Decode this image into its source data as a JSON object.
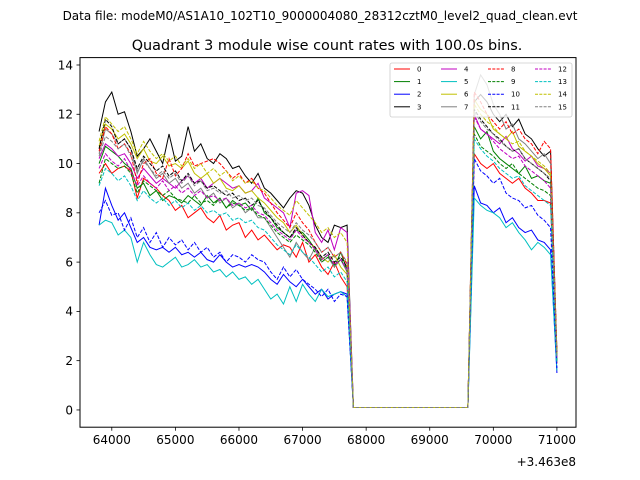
{
  "page": {
    "suptitle": "Data file: modeM0/AS1A10_102T10_9000004080_28312cztM0_level2_quad_clean.evt",
    "title": "Quadrant 3 module wise count rates with 100.0s bins."
  },
  "chart_data": {
    "type": "line",
    "title": "Quadrant 3 module wise count rates with 100.0s bins.",
    "xlabel": "",
    "ylabel": "",
    "x_offset_label": "+3.463e8",
    "xlim": [
      63500,
      71300
    ],
    "ylim": [
      -0.7,
      14.3
    ],
    "x_ticks": [
      64000,
      65000,
      66000,
      67000,
      68000,
      69000,
      70000,
      71000
    ],
    "x_tick_labels": [
      "64000",
      "65000",
      "66000",
      "67000",
      "68000",
      "69000",
      "70000",
      "71000"
    ],
    "y_ticks": [
      0,
      2,
      4,
      6,
      8,
      10,
      12,
      14
    ],
    "y_tick_labels": [
      "0",
      "2",
      "4",
      "6",
      "8",
      "10",
      "12",
      "14"
    ],
    "grid": false,
    "legend_position": "top-right",
    "legend_columns": 4,
    "x": [
      63800,
      63900,
      64000,
      64100,
      64200,
      64300,
      64400,
      64500,
      64600,
      64700,
      64800,
      64900,
      65000,
      65100,
      65200,
      65300,
      65400,
      65500,
      65600,
      65700,
      65800,
      65900,
      66000,
      66100,
      66200,
      66300,
      66400,
      66500,
      66600,
      66700,
      66800,
      66900,
      67000,
      67100,
      67200,
      67300,
      67400,
      67500,
      67600,
      67700,
      67800,
      69600,
      69700,
      69800,
      69900,
      70000,
      70100,
      70200,
      70300,
      70400,
      70500,
      70600,
      70700,
      70800,
      70900,
      71000
    ],
    "series": [
      {
        "name": "0",
        "color": "#ff0000",
        "dash": "solid",
        "values": [
          9.6,
          10.0,
          9.6,
          9.8,
          9.9,
          9.7,
          8.6,
          9.4,
          9.2,
          9.0,
          8.7,
          8.5,
          8.1,
          8.3,
          7.8,
          8.0,
          8.2,
          7.8,
          7.6,
          7.9,
          7.3,
          7.5,
          7.6,
          7.0,
          7.3,
          6.9,
          7.1,
          6.8,
          6.5,
          6.7,
          6.6,
          6.2,
          6.8,
          6.0,
          6.3,
          5.8,
          5.5,
          6.0,
          5.4,
          5.0,
          0.1,
          0.1,
          10.4,
          10.0,
          9.8,
          10.0,
          9.6,
          9.4,
          9.2,
          9.4,
          9.0,
          8.8,
          8.5,
          8.5,
          8.4,
          1.9
        ]
      },
      {
        "name": "1",
        "color": "#008000",
        "dash": "solid",
        "values": [
          10.0,
          10.7,
          10.5,
          10.3,
          10.0,
          9.8,
          9.0,
          9.2,
          8.7,
          8.9,
          8.5,
          8.7,
          8.6,
          8.4,
          8.7,
          8.5,
          8.3,
          8.7,
          8.4,
          8.6,
          8.2,
          8.5,
          8.3,
          8.4,
          8.1,
          8.6,
          8.0,
          7.8,
          7.4,
          7.2,
          7.0,
          7.3,
          7.2,
          6.9,
          6.5,
          6.1,
          6.3,
          5.8,
          6.4,
          5.7,
          0.1,
          0.1,
          11.5,
          11.0,
          11.3,
          10.5,
          10.2,
          10.0,
          9.8,
          9.6,
          9.9,
          9.4,
          9.5,
          9.3,
          9.2,
          2.0
        ]
      },
      {
        "name": "2",
        "color": "#0000ff",
        "dash": "solid",
        "values": [
          7.5,
          9.0,
          8.3,
          7.7,
          8.0,
          7.4,
          6.8,
          7.0,
          6.6,
          6.5,
          6.6,
          6.4,
          6.6,
          6.3,
          6.4,
          6.2,
          6.4,
          6.1,
          6.0,
          6.3,
          6.0,
          5.8,
          5.9,
          5.8,
          5.9,
          5.8,
          5.6,
          5.3,
          5.1,
          5.5,
          5.2,
          5.0,
          5.3,
          5.0,
          4.7,
          4.9,
          4.5,
          4.7,
          4.8,
          4.7,
          0.1,
          0.1,
          9.1,
          8.4,
          8.3,
          8.0,
          8.2,
          7.6,
          7.8,
          7.4,
          7.2,
          7.3,
          6.9,
          6.8,
          6.5,
          1.5
        ]
      },
      {
        "name": "3",
        "color": "#000000",
        "dash": "solid",
        "values": [
          11.3,
          12.5,
          12.9,
          12.0,
          12.1,
          11.3,
          10.3,
          10.6,
          11.0,
          10.5,
          10.0,
          11.2,
          10.1,
          10.3,
          11.5,
          10.5,
          10.8,
          10.2,
          10.0,
          10.4,
          10.2,
          9.8,
          9.9,
          9.5,
          9.2,
          9.6,
          9.0,
          8.8,
          8.5,
          8.2,
          8.6,
          8.9,
          8.8,
          8.3,
          7.5,
          7.0,
          6.8,
          7.5,
          7.4,
          7.5,
          0.1,
          0.1,
          12.5,
          12.8,
          12.5,
          12.0,
          11.7,
          12.0,
          11.5,
          11.8,
          11.2,
          11.0,
          10.6,
          10.3,
          10.5,
          2.3
        ]
      },
      {
        "name": "4",
        "color": "#c000c0",
        "dash": "solid",
        "values": [
          10.2,
          10.8,
          10.6,
          10.3,
          10.4,
          10.0,
          9.4,
          9.8,
          9.5,
          9.2,
          9.4,
          9.2,
          9.0,
          9.3,
          9.5,
          9.2,
          9.4,
          9.0,
          9.2,
          9.4,
          9.2,
          9.0,
          9.1,
          8.8,
          8.9,
          9.2,
          8.6,
          8.4,
          8.2,
          8.0,
          7.4,
          8.8,
          8.9,
          8.7,
          7.2,
          6.8,
          7.3,
          6.5,
          7.4,
          7.2,
          0.1,
          0.1,
          12.0,
          11.4,
          11.2,
          11.0,
          10.8,
          11.1,
          10.6,
          10.4,
          10.1,
          10.3,
          9.9,
          9.8,
          9.6,
          2.2
        ]
      },
      {
        "name": "5",
        "color": "#00c0c0",
        "dash": "solid",
        "values": [
          7.5,
          7.7,
          7.6,
          7.1,
          7.3,
          7.0,
          6.0,
          6.8,
          6.3,
          5.9,
          5.8,
          6.0,
          6.2,
          5.8,
          5.9,
          6.1,
          5.8,
          5.9,
          5.6,
          5.7,
          5.4,
          5.6,
          5.3,
          5.4,
          5.1,
          5.3,
          4.9,
          4.5,
          4.7,
          4.3,
          5.0,
          4.4,
          5.1,
          4.7,
          4.4,
          4.9,
          4.6,
          4.7,
          4.8,
          4.6,
          0.1,
          0.1,
          8.6,
          8.3,
          8.1,
          8.0,
          7.8,
          7.4,
          7.6,
          7.2,
          6.9,
          6.5,
          6.8,
          6.6,
          6.3,
          1.6
        ]
      },
      {
        "name": "6",
        "color": "#c0c000",
        "dash": "solid",
        "values": [
          10.7,
          11.6,
          11.4,
          11.0,
          11.2,
          10.8,
          10.2,
          10.6,
          10.1,
          10.0,
          10.3,
          9.9,
          10.0,
          9.8,
          10.1,
          9.6,
          9.4,
          9.6,
          9.2,
          9.4,
          9.0,
          8.9,
          9.1,
          8.8,
          8.9,
          8.6,
          8.4,
          8.1,
          7.8,
          7.6,
          7.2,
          7.5,
          7.1,
          6.8,
          6.6,
          6.2,
          6.0,
          6.3,
          5.8,
          5.5,
          0.1,
          0.1,
          12.6,
          12.2,
          12.0,
          11.4,
          11.2,
          11.0,
          11.3,
          10.7,
          10.5,
          10.3,
          10.0,
          9.8,
          9.5,
          2.2
        ]
      },
      {
        "name": "7",
        "color": "#808080",
        "dash": "solid",
        "values": [
          10.4,
          11.4,
          11.2,
          10.8,
          11.0,
          10.6,
          9.6,
          10.2,
          9.8,
          9.4,
          9.6,
          9.2,
          9.4,
          9.0,
          9.2,
          8.8,
          9.0,
          8.6,
          8.8,
          8.4,
          8.6,
          8.2,
          8.4,
          8.0,
          8.2,
          7.8,
          7.8,
          7.4,
          7.0,
          6.6,
          6.2,
          6.8,
          6.4,
          6.1,
          6.6,
          6.0,
          6.2,
          5.8,
          6.1,
          5.6,
          0.1,
          0.1,
          12.8,
          13.6,
          13.2,
          12.4,
          12.0,
          11.4,
          11.6,
          11.0,
          10.8,
          10.5,
          10.2,
          10.4,
          10.0,
          2.1
        ]
      },
      {
        "name": "8",
        "color": "#ff0000",
        "dash": "dashed",
        "values": [
          10.5,
          11.5,
          11.2,
          10.6,
          10.8,
          10.4,
          9.2,
          10.0,
          10.2,
          9.6,
          9.4,
          10.2,
          9.5,
          9.8,
          10.4,
          9.9,
          10.0,
          10.1,
          10.2,
          10.0,
          9.7,
          9.4,
          9.6,
          9.2,
          9.4,
          9.0,
          8.8,
          8.4,
          8.0,
          7.7,
          7.4,
          8.0,
          7.6,
          7.3,
          6.8,
          6.4,
          6.6,
          6.2,
          6.4,
          5.9,
          0.1,
          0.1,
          12.9,
          12.5,
          12.0,
          11.7,
          11.4,
          11.7,
          11.2,
          11.4,
          11.0,
          10.8,
          10.4,
          10.9,
          10.6,
          2.4
        ]
      },
      {
        "name": "9",
        "color": "#008000",
        "dash": "dashed",
        "values": [
          9.2,
          10.2,
          10.0,
          9.8,
          9.9,
          9.6,
          8.8,
          9.3,
          9.1,
          8.9,
          8.7,
          8.9,
          8.6,
          8.5,
          8.4,
          8.7,
          8.4,
          8.5,
          8.3,
          8.6,
          8.2,
          8.4,
          8.3,
          8.1,
          8.2,
          7.9,
          7.8,
          7.5,
          7.2,
          7.0,
          6.8,
          7.1,
          6.9,
          6.7,
          6.4,
          6.0,
          6.2,
          5.9,
          6.1,
          5.7,
          0.1,
          0.1,
          11.2,
          10.7,
          10.5,
          10.3,
          10.0,
          9.8,
          10.0,
          9.6,
          9.4,
          9.2,
          9.0,
          8.9,
          8.7,
          2.0
        ]
      },
      {
        "name": "10",
        "color": "#0000ff",
        "dash": "dashed",
        "values": [
          8.0,
          8.5,
          7.9,
          8.0,
          7.3,
          7.8,
          7.0,
          7.4,
          6.8,
          7.2,
          6.6,
          7.0,
          6.7,
          6.9,
          6.5,
          6.8,
          6.4,
          6.6,
          6.2,
          6.4,
          6.0,
          6.3,
          6.2,
          6.0,
          6.3,
          6.1,
          6.0,
          5.6,
          5.3,
          5.8,
          5.4,
          5.7,
          5.3,
          5.1,
          4.9,
          4.6,
          4.9,
          4.4,
          4.7,
          4.6,
          0.1,
          0.1,
          10.2,
          9.7,
          9.5,
          9.2,
          9.4,
          8.8,
          8.6,
          8.5,
          8.2,
          8.3,
          7.9,
          7.7,
          7.4,
          1.7
        ]
      },
      {
        "name": "11",
        "color": "#000000",
        "dash": "dashed",
        "values": [
          10.6,
          11.8,
          11.5,
          10.8,
          11.0,
          10.6,
          9.8,
          10.3,
          10.0,
          9.7,
          9.9,
          9.5,
          9.7,
          9.3,
          9.6,
          9.2,
          9.3,
          9.0,
          9.1,
          8.9,
          8.7,
          8.8,
          8.5,
          8.6,
          8.3,
          8.5,
          8.1,
          7.8,
          7.5,
          7.2,
          7.0,
          7.4,
          7.1,
          6.8,
          6.6,
          6.2,
          6.4,
          6.0,
          6.2,
          5.8,
          0.1,
          0.1,
          12.2,
          11.8,
          11.5,
          11.2,
          11.0,
          10.7,
          10.5,
          10.6,
          10.2,
          10.0,
          9.8,
          9.6,
          9.3,
          2.2
        ]
      },
      {
        "name": "12",
        "color": "#c000c0",
        "dash": "dashed",
        "values": [
          9.8,
          10.4,
          10.1,
          9.9,
          10.2,
          9.7,
          9.1,
          9.5,
          9.2,
          9.0,
          9.3,
          8.9,
          9.1,
          8.8,
          9.0,
          8.7,
          8.9,
          8.6,
          8.7,
          8.5,
          8.6,
          8.3,
          8.4,
          8.2,
          8.3,
          8.0,
          7.9,
          7.6,
          7.3,
          7.1,
          6.9,
          7.3,
          7.0,
          6.8,
          6.5,
          6.1,
          6.3,
          5.9,
          6.1,
          5.7,
          0.1,
          0.1,
          11.9,
          11.4,
          11.2,
          10.9,
          10.6,
          10.4,
          10.2,
          10.3,
          9.9,
          9.7,
          9.5,
          9.3,
          9.0,
          2.1
        ]
      },
      {
        "name": "13",
        "color": "#00c0c0",
        "dash": "dashed",
        "values": [
          9.1,
          9.8,
          9.6,
          9.3,
          9.5,
          9.1,
          8.5,
          8.9,
          8.6,
          8.4,
          8.6,
          8.3,
          8.5,
          8.2,
          8.4,
          8.1,
          8.3,
          8.0,
          8.1,
          7.9,
          8.0,
          7.7,
          7.8,
          7.6,
          7.7,
          7.4,
          7.3,
          7.0,
          6.7,
          6.5,
          6.3,
          6.7,
          6.4,
          6.2,
          5.9,
          5.6,
          5.8,
          5.4,
          5.6,
          5.2,
          0.1,
          0.1,
          11.0,
          10.6,
          10.3,
          10.1,
          9.8,
          9.6,
          9.4,
          9.5,
          9.1,
          8.9,
          8.7,
          8.5,
          8.3,
          1.9
        ]
      },
      {
        "name": "14",
        "color": "#c0c000",
        "dash": "dashed",
        "values": [
          10.9,
          11.9,
          11.6,
          11.3,
          11.5,
          11.0,
          10.4,
          10.9,
          10.5,
          10.2,
          10.4,
          10.1,
          10.3,
          9.9,
          10.2,
          9.8,
          10.0,
          9.6,
          9.8,
          9.5,
          9.7,
          9.3,
          9.5,
          9.2,
          9.3,
          9.0,
          8.9,
          8.6,
          8.3,
          8.1,
          7.9,
          8.5,
          8.2,
          7.9,
          7.6,
          7.2,
          7.4,
          7.0,
          7.2,
          6.8,
          0.1,
          0.1,
          12.4,
          12.0,
          11.7,
          11.5,
          11.2,
          11.0,
          10.8,
          10.9,
          10.5,
          10.3,
          10.1,
          9.9,
          9.6,
          2.3
        ]
      },
      {
        "name": "15",
        "color": "#808080",
        "dash": "dashed",
        "values": [
          10.3,
          11.1,
          10.9,
          10.6,
          10.8,
          10.3,
          9.7,
          10.1,
          9.8,
          9.5,
          9.7,
          9.4,
          9.6,
          9.2,
          9.5,
          9.1,
          9.3,
          8.9,
          9.0,
          8.8,
          8.9,
          8.6,
          8.7,
          8.5,
          8.6,
          8.3,
          8.2,
          7.9,
          7.6,
          7.4,
          7.2,
          7.6,
          7.3,
          7.1,
          6.8,
          6.4,
          6.6,
          6.2,
          6.4,
          6.0,
          0.1,
          0.1,
          12.1,
          11.7,
          11.4,
          11.2,
          10.9,
          10.7,
          10.5,
          10.6,
          10.2,
          10.0,
          9.8,
          9.6,
          9.4,
          2.2
        ]
      }
    ]
  }
}
